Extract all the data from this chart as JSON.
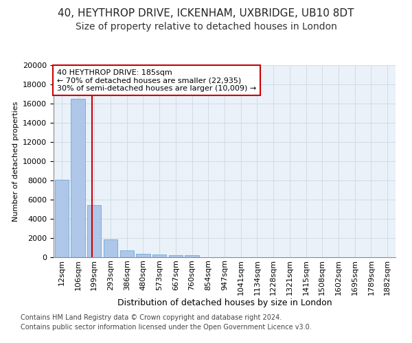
{
  "title1": "40, HEYTHROP DRIVE, ICKENHAM, UXBRIDGE, UB10 8DT",
  "title2": "Size of property relative to detached houses in London",
  "xlabel": "Distribution of detached houses by size in London",
  "ylabel": "Number of detached properties",
  "categories": [
    "12sqm",
    "106sqm",
    "199sqm",
    "293sqm",
    "386sqm",
    "480sqm",
    "573sqm",
    "667sqm",
    "760sqm",
    "854sqm",
    "947sqm",
    "1041sqm",
    "1134sqm",
    "1228sqm",
    "1321sqm",
    "1415sqm",
    "1508sqm",
    "1602sqm",
    "1695sqm",
    "1789sqm",
    "1882sqm"
  ],
  "values": [
    8100,
    16500,
    5400,
    1850,
    750,
    350,
    270,
    220,
    200,
    0,
    0,
    0,
    0,
    0,
    0,
    0,
    0,
    0,
    0,
    0,
    0
  ],
  "bar_color": "#aec6e8",
  "bar_edge_color": "#5a9fd4",
  "vline_x": 1.85,
  "property_line_label": "40 HEYTHROP DRIVE: 185sqm",
  "annotation_line1": "← 70% of detached houses are smaller (22,935)",
  "annotation_line2": "30% of semi-detached houses are larger (10,009) →",
  "annotation_box_color": "#ffffff",
  "annotation_box_edge": "#cc0000",
  "vline_color": "#cc0000",
  "grid_color": "#d0dce8",
  "bg_color": "#eaf1f8",
  "ylim": [
    0,
    20000
  ],
  "yticks": [
    0,
    2000,
    4000,
    6000,
    8000,
    10000,
    12000,
    14000,
    16000,
    18000,
    20000
  ],
  "footnote1": "Contains HM Land Registry data © Crown copyright and database right 2024.",
  "footnote2": "Contains public sector information licensed under the Open Government Licence v3.0.",
  "title1_fontsize": 11,
  "title2_fontsize": 10,
  "xlabel_fontsize": 9,
  "ylabel_fontsize": 8,
  "tick_fontsize": 8,
  "annotation_fontsize": 8,
  "footnote_fontsize": 7
}
